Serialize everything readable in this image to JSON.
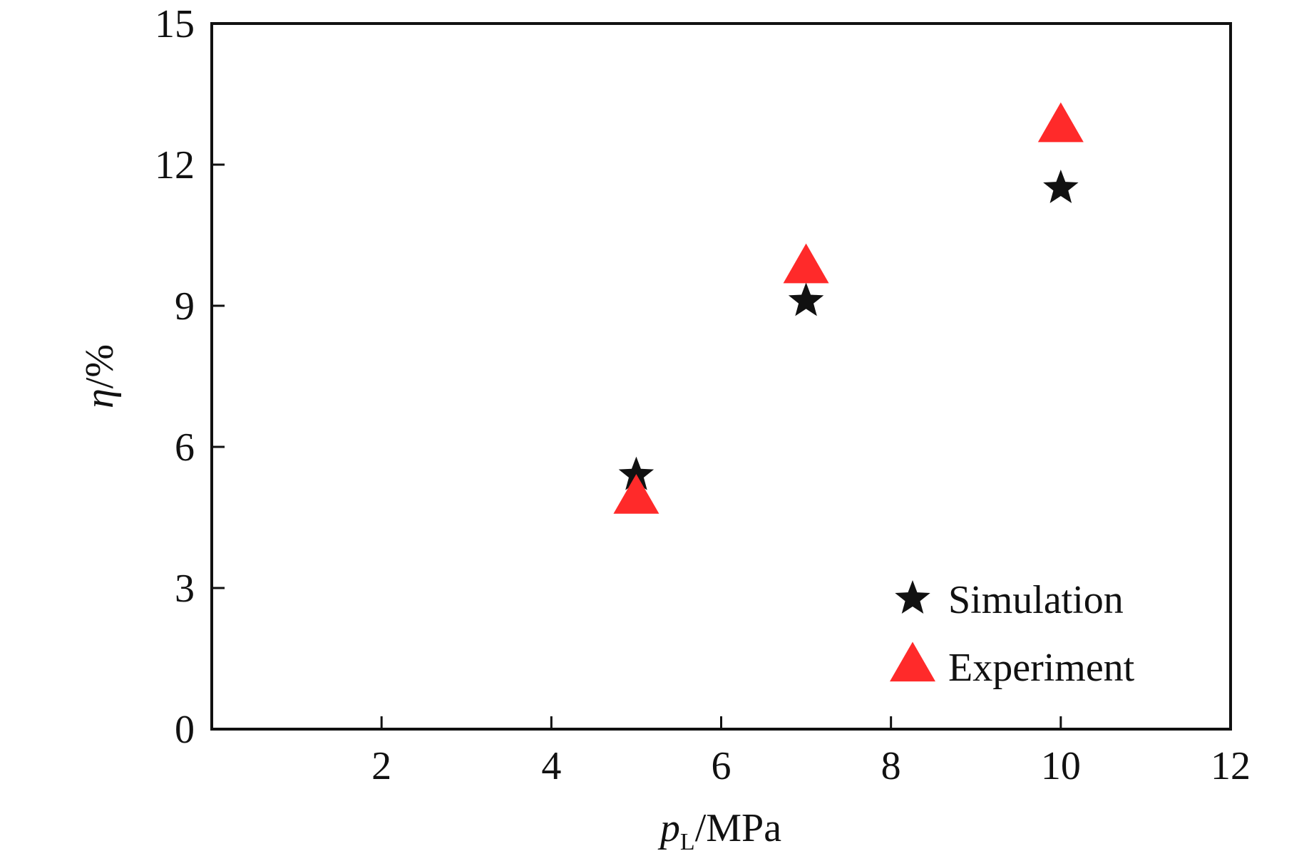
{
  "chart_data": {
    "type": "scatter",
    "title": "",
    "xlabel": {
      "var": "p",
      "sub": "L",
      "unit": "/MPa"
    },
    "ylabel": {
      "var": "η",
      "unit": "/%"
    },
    "xlim": [
      0,
      12
    ],
    "ylim": [
      0,
      15
    ],
    "xticks": [
      2,
      4,
      6,
      8,
      10,
      12
    ],
    "yticks": [
      0,
      3,
      6,
      9,
      12,
      15
    ],
    "grid": false,
    "legend_position": "bottom-right",
    "series": [
      {
        "name": "Simulation",
        "marker": "star",
        "color": "#111111",
        "x": [
          5,
          7,
          10
        ],
        "y": [
          5.4,
          9.1,
          11.5
        ]
      },
      {
        "name": "Experiment",
        "marker": "triangle",
        "color": "#ff2a2a",
        "x": [
          5,
          7,
          10
        ],
        "y": [
          4.9,
          9.8,
          12.8
        ]
      }
    ]
  }
}
